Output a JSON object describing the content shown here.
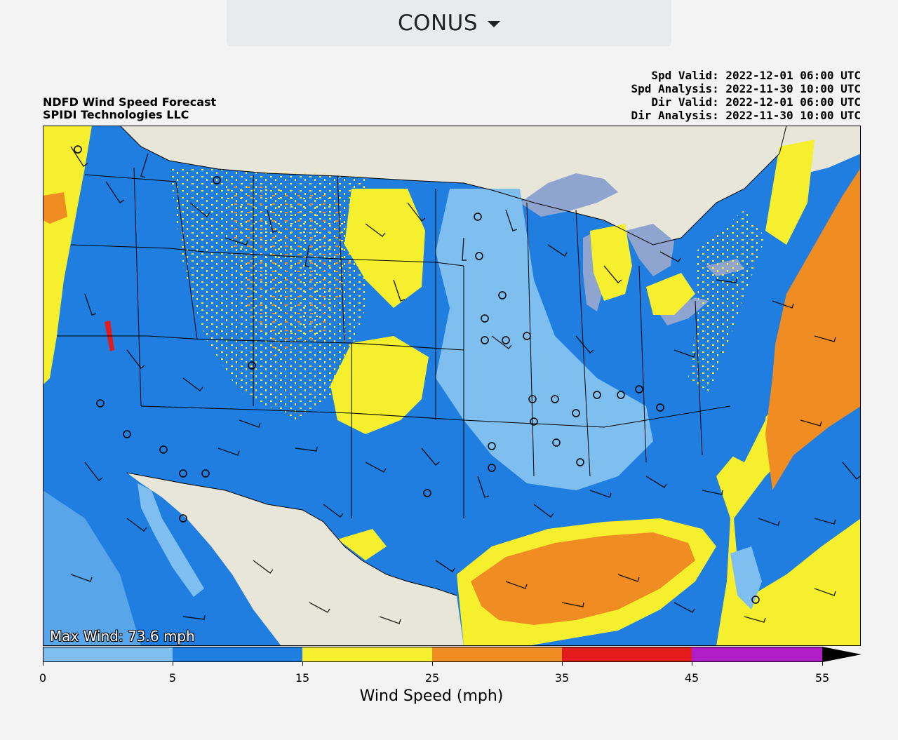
{
  "region_selector": {
    "label": "CONUS",
    "icon": "caret-down-icon"
  },
  "header": {
    "title": "NDFD Wind Speed Forecast",
    "credit": "SPIDI Technologies LLC",
    "validity": [
      "Spd Valid: 2022-12-01 06:00 UTC",
      "Spd Analysis: 2022-11-30 10:00 UTC",
      "Dir Valid: 2022-12-01 06:00 UTC",
      "Dir Analysis: 2022-11-30 10:00 UTC"
    ]
  },
  "map": {
    "max_wind_text": "Max Wind: 73.6 mph",
    "colors": {
      "land_outside": "#e8e6d8",
      "water": "#8fa5cf",
      "borders": "#000000"
    }
  },
  "colorbar": {
    "label": "Wind Speed (mph)",
    "ticks": [
      "0",
      "5",
      "15",
      "25",
      "35",
      "45",
      "55"
    ],
    "bins": [
      {
        "from": 0,
        "to": 5,
        "color": "#7ebff0"
      },
      {
        "from": 5,
        "to": 15,
        "color": "#1f7ee0"
      },
      {
        "from": 15,
        "to": 25,
        "color": "#f5ef2e"
      },
      {
        "from": 25,
        "to": 35,
        "color": "#ef8c22"
      },
      {
        "from": 35,
        "to": 45,
        "color": "#e31b1b"
      },
      {
        "from": 45,
        "to": 55,
        "color": "#b11ec8"
      },
      {
        "from": 55,
        "to": null,
        "color": "#000000"
      }
    ]
  }
}
